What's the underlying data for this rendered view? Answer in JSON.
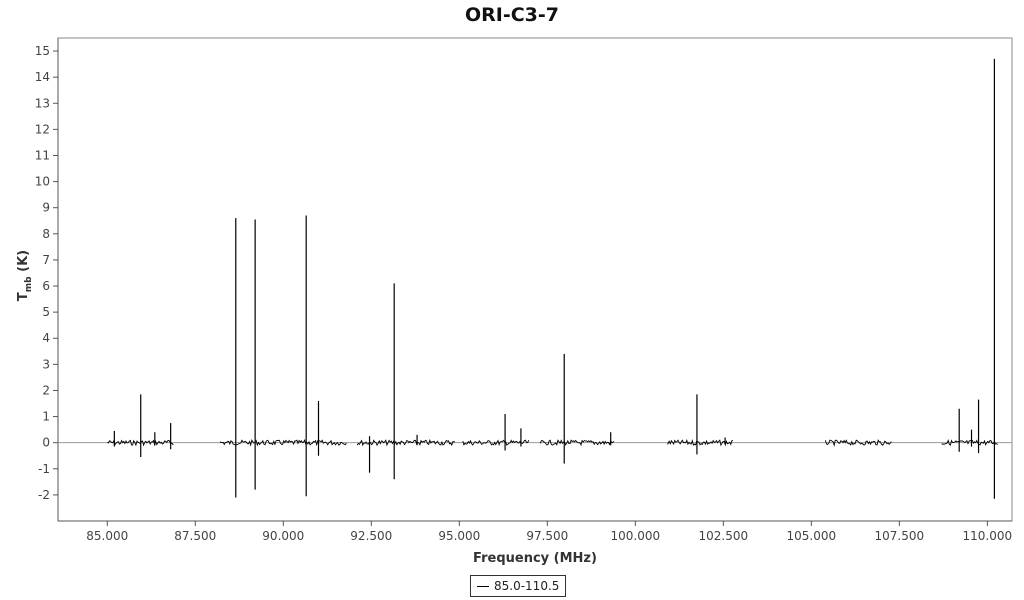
{
  "chart_data": {
    "type": "line",
    "title": "ORI-C3-7",
    "xlabel": "Frequency (MHz)",
    "ylabel": {
      "main": "T",
      "subscript": "mb",
      "unit": " (K)"
    },
    "xlim": [
      83.6,
      110.7
    ],
    "ylim": [
      -3.0,
      15.5
    ],
    "x_ticks": [
      "85.000",
      "87.500",
      "90.000",
      "92.500",
      "95.000",
      "97.500",
      "100.000",
      "102.500",
      "105.000",
      "107.500",
      "110.000"
    ],
    "x_tick_values": [
      85.0,
      87.5,
      90.0,
      92.5,
      95.0,
      97.5,
      100.0,
      102.5,
      105.0,
      107.5,
      110.0
    ],
    "y_ticks": [
      -2,
      -1,
      0,
      1,
      2,
      3,
      4,
      5,
      6,
      7,
      8,
      9,
      10,
      11,
      12,
      13,
      14,
      15
    ],
    "grid": false,
    "legend_position": "bottom-center",
    "series": [
      {
        "name": "85.0-110.5",
        "color": "#000000",
        "baseline_segments": [
          [
            85.0,
            86.9
          ],
          [
            88.2,
            91.8
          ],
          [
            92.1,
            94.9
          ],
          [
            95.1,
            97.0
          ],
          [
            97.3,
            99.4
          ],
          [
            100.9,
            102.8
          ],
          [
            105.4,
            107.3
          ],
          [
            108.7,
            110.3
          ]
        ],
        "lines": [
          {
            "x": 85.2,
            "ymax": 0.45,
            "ymin": -0.15
          },
          {
            "x": 85.95,
            "ymax": 1.85,
            "ymin": -0.55
          },
          {
            "x": 86.35,
            "ymax": 0.4,
            "ymin": -0.1
          },
          {
            "x": 86.8,
            "ymax": 0.75,
            "ymin": -0.25
          },
          {
            "x": 88.65,
            "ymax": 8.6,
            "ymin": -2.1
          },
          {
            "x": 89.2,
            "ymax": 8.55,
            "ymin": -1.8
          },
          {
            "x": 90.65,
            "ymax": 8.7,
            "ymin": -2.05
          },
          {
            "x": 91.0,
            "ymax": 1.6,
            "ymin": -0.5
          },
          {
            "x": 92.45,
            "ymax": 0.25,
            "ymin": -1.15
          },
          {
            "x": 93.15,
            "ymax": 6.1,
            "ymin": -1.4
          },
          {
            "x": 93.8,
            "ymax": 0.3,
            "ymin": -0.1
          },
          {
            "x": 96.3,
            "ymax": 1.1,
            "ymin": -0.3
          },
          {
            "x": 96.75,
            "ymax": 0.55,
            "ymin": -0.15
          },
          {
            "x": 97.98,
            "ymax": 3.4,
            "ymin": -0.8
          },
          {
            "x": 99.3,
            "ymax": 0.4,
            "ymin": -0.1
          },
          {
            "x": 101.75,
            "ymax": 1.85,
            "ymin": -0.45
          },
          {
            "x": 102.55,
            "ymax": 0.2,
            "ymin": -0.05
          },
          {
            "x": 109.2,
            "ymax": 1.3,
            "ymin": -0.35
          },
          {
            "x": 109.55,
            "ymax": 0.5,
            "ymin": -0.15
          },
          {
            "x": 109.75,
            "ymax": 1.65,
            "ymin": -0.4
          },
          {
            "x": 110.2,
            "ymax": 14.7,
            "ymin": -2.15
          }
        ]
      }
    ]
  },
  "legend": {
    "label": "85.0-110.5"
  }
}
